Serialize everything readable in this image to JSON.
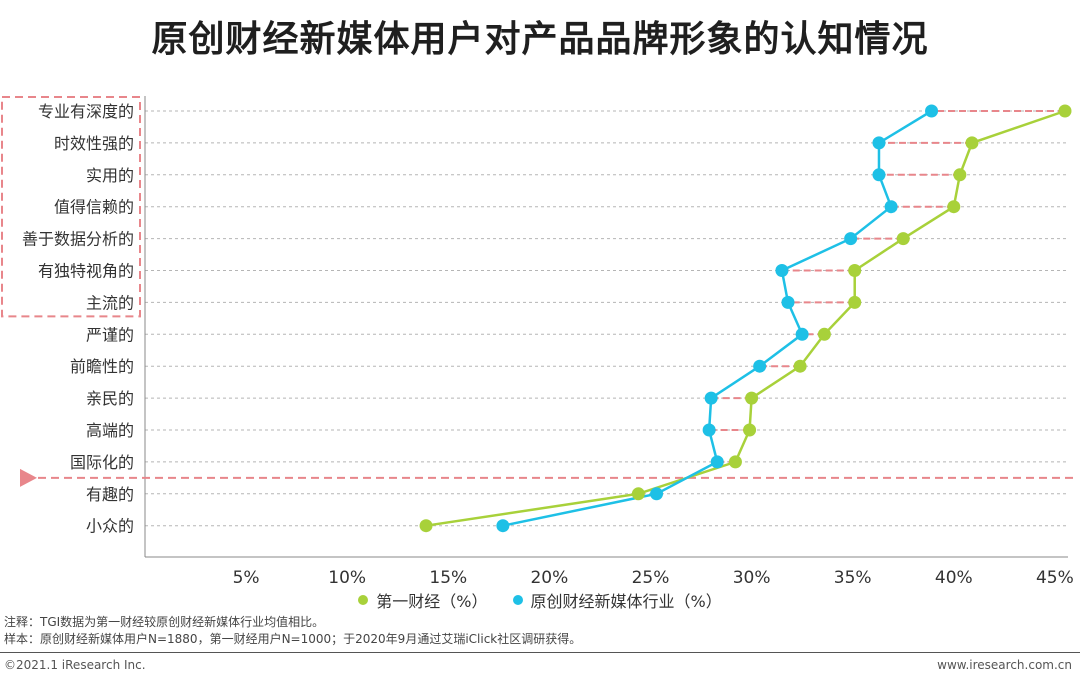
{
  "title": "原创财经新媒体用户对产品品牌形象的认知情况",
  "chart_data": {
    "type": "line",
    "orientation": "horizontal",
    "categories": [
      "专业有深度的",
      "时效性强的",
      "实用的",
      "值得信赖的",
      "善于数据分析的",
      "有独特视角的",
      "主流的",
      "严谨的",
      "前瞻性的",
      "亲民的",
      "高端的",
      "国际化的",
      "有趣的",
      "小众的"
    ],
    "series": [
      {
        "name": "第一财经（%）",
        "color": "#a8d13a",
        "values": [
          45.5,
          40.9,
          40.3,
          40.0,
          37.5,
          35.1,
          35.1,
          33.6,
          32.4,
          30.0,
          29.9,
          29.2,
          24.4,
          13.9
        ]
      },
      {
        "name": "原创财经新媒体行业（%）",
        "color": "#1ec0e6",
        "values": [
          38.9,
          36.3,
          36.3,
          36.9,
          34.9,
          31.5,
          31.8,
          32.5,
          30.4,
          28.0,
          27.9,
          28.3,
          25.3,
          17.7
        ]
      }
    ],
    "x_ticks": [
      "5%",
      "10%",
      "15%",
      "20%",
      "25%",
      "30%",
      "35%",
      "40%",
      "45%"
    ],
    "xlim": [
      0,
      45.5
    ],
    "grid": "horizontal dashed",
    "legend": "bottom-center",
    "highlight_box_categories": 7,
    "threshold_after_category": "国际化的"
  },
  "notes": {
    "note1": "注释：TGI数据为第一财经较原创财经新媒体行业均值相比。",
    "note2": "样本：原创财经新媒体用户N=1880，第一财经用户N=1000；于2020年9月通过艾瑞iClick社区调研获得。"
  },
  "footer": {
    "copyright": "©2021.1 iResearch Inc.",
    "website": "www.iresearch.com.cn"
  }
}
